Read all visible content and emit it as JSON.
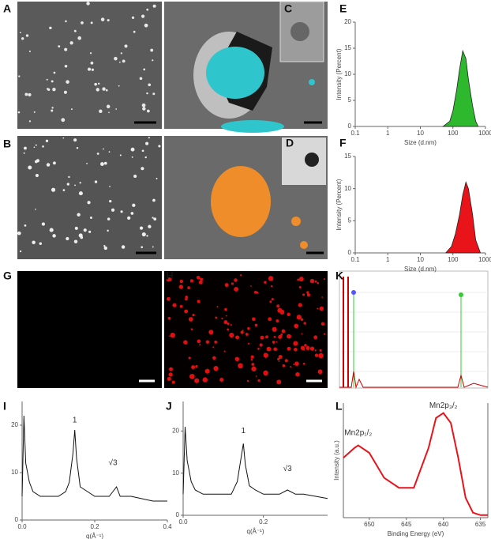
{
  "panel_labels": [
    "A",
    "B",
    "C",
    "D",
    "E",
    "F",
    "G",
    "H",
    "I",
    "J",
    "K",
    "L"
  ],
  "chart_data": [
    {
      "type": "area",
      "color": "#2db82d",
      "log_x": true,
      "x": [
        50,
        80,
        100,
        130,
        160,
        200,
        250,
        300,
        400,
        500,
        600
      ],
      "values": [
        0,
        1,
        3,
        7,
        11,
        14.5,
        13,
        9,
        4,
        1,
        0
      ],
      "xlim": [
        0.1,
        1000
      ],
      "ylim": [
        0,
        20
      ],
      "xticks": [
        {
          "value": 0.1,
          "label": "0.1"
        },
        1,
        10,
        100,
        1000
      ],
      "yticks": [
        0,
        5,
        10,
        15,
        20
      ],
      "xlabel": "Size (d.nm)",
      "ylabel": "Intensity (Percent)"
    },
    {
      "type": "area",
      "color": "#e8141a",
      "log_x": true,
      "x": [
        60,
        90,
        120,
        160,
        200,
        250,
        300,
        400,
        500,
        700
      ],
      "values": [
        0,
        1,
        3,
        6,
        9,
        11,
        10,
        6,
        2,
        0
      ],
      "xlim": [
        0.1,
        1000
      ],
      "ylim": [
        0,
        15
      ],
      "xticks": [
        {
          "value": 0.1,
          "label": "0.1"
        },
        1,
        10,
        100,
        1000
      ],
      "yticks": [
        0,
        5,
        10,
        15
      ],
      "xlabel": "Size (d.nm)",
      "ylabel": "Intensity (Percent)"
    },
    {
      "type": "line",
      "color": "#111111",
      "x": [
        0,
        0.005,
        0.01,
        0.02,
        0.03,
        0.05,
        0.08,
        0.1,
        0.12,
        0.13,
        0.14,
        0.145,
        0.15,
        0.16,
        0.18,
        0.2,
        0.22,
        0.24,
        0.25,
        0.26,
        0.27,
        0.3,
        0.33,
        0.36,
        0.4
      ],
      "values": [
        5,
        22,
        12,
        8,
        6,
        5,
        5,
        5,
        6,
        8,
        14,
        19,
        13,
        7,
        6,
        5,
        5,
        5,
        6,
        7,
        5,
        5,
        4.5,
        4,
        4
      ],
      "xlim": [
        0,
        0.4
      ],
      "ylim": [
        0,
        25
      ],
      "xticks": [
        {
          "value": 0,
          "label": "0.0"
        },
        0.2,
        0.4
      ],
      "yticks": [
        0,
        10,
        20
      ],
      "xlabel": "q(Å⁻¹)",
      "annotations": [
        {
          "text": "1",
          "x": 0.145,
          "y": 21
        },
        {
          "text": "√3",
          "x": 0.25,
          "y": 12
        }
      ]
    },
    {
      "type": "line",
      "color": "#111111",
      "x": [
        0,
        0.005,
        0.01,
        0.02,
        0.03,
        0.05,
        0.08,
        0.1,
        0.12,
        0.135,
        0.145,
        0.15,
        0.155,
        0.165,
        0.18,
        0.2,
        0.22,
        0.24,
        0.26,
        0.28,
        0.3,
        0.33,
        0.36
      ],
      "values": [
        5,
        21,
        13,
        8,
        6,
        5,
        5,
        5,
        5,
        8,
        14,
        17,
        12,
        7,
        6,
        5,
        5,
        5,
        6,
        5,
        5,
        4.5,
        4
      ],
      "xlim": [
        0,
        0.36
      ],
      "ylim": [
        0,
        27
      ],
      "xticks": [
        {
          "value": 0,
          "label": "0.0"
        },
        0.2
      ],
      "yticks": [
        0,
        10,
        20
      ],
      "xlabel": "q(Å⁻¹)",
      "annotations": [
        {
          "text": "1",
          "x": 0.15,
          "y": 20
        },
        {
          "text": "√3",
          "x": 0.26,
          "y": 11
        }
      ]
    },
    {
      "type": "line",
      "color": "#e8141a",
      "x": [
        653.5,
        652,
        651.5,
        650,
        648,
        646,
        644,
        642,
        641,
        640,
        639,
        638,
        637,
        636,
        635,
        634
      ],
      "values": [
        12,
        14,
        14.5,
        13,
        8,
        6,
        6,
        14,
        20,
        21,
        19,
        12,
        4,
        1,
        0.5,
        0.5
      ],
      "xlim": [
        653.5,
        634
      ],
      "ylim": [
        0,
        23
      ],
      "xticks": [
        650,
        645,
        640,
        635
      ],
      "yticks": [],
      "xlabel": "Binding Energy (eV)",
      "ylabel": "Intensity (a.u.)",
      "annotations": [
        {
          "text": "Mn2p₁/₂",
          "x": 651.5,
          "y": 17
        },
        {
          "text": "Mn2p₃/₂",
          "x": 640,
          "y": 22.5
        }
      ]
    }
  ]
}
